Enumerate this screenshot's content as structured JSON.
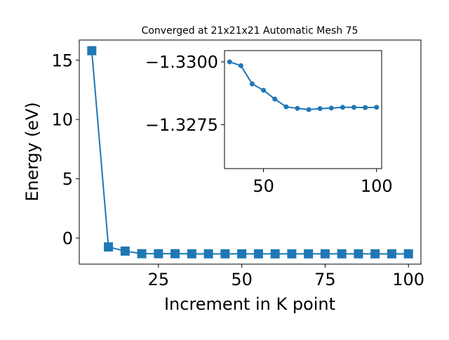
{
  "chart_data": [
    {
      "type": "line",
      "title": "Converged at 21x21x21 Automatic Mesh 75",
      "xlabel": "Increment in K point",
      "ylabel": "Energy (eV)",
      "xlim": [
        1.25,
        103.75
      ],
      "ylim": [
        -2.2,
        16.7
      ],
      "xticks": [
        25,
        50,
        75,
        100
      ],
      "yticks": [
        0,
        5,
        10,
        15
      ],
      "grid": false,
      "marker": "square",
      "series": [
        {
          "color": "#1f77b4",
          "x": [
            5,
            10,
            15,
            20,
            25,
            30,
            35,
            40,
            45,
            50,
            55,
            60,
            65,
            70,
            75,
            80,
            85,
            90,
            95,
            100
          ],
          "y": [
            15.8,
            -0.75,
            -1.1,
            -1.32,
            -1.32,
            -1.32,
            -1.33,
            -1.33,
            -1.33,
            -1.33,
            -1.33,
            -1.33,
            -1.33,
            -1.33,
            -1.33,
            -1.33,
            -1.33,
            -1.33,
            -1.33,
            -1.33
          ]
        }
      ]
    },
    {
      "type": "line",
      "title": "",
      "xlabel": "",
      "ylabel": "",
      "xlim": [
        32.75,
        102.25
      ],
      "ylim": [
        -1.32575,
        -1.33045
      ],
      "y_axis_inverted": true,
      "xticks": [
        50,
        100
      ],
      "yticks": [
        -1.33,
        -1.3275
      ],
      "ytick_labels": [
        "−1.3300",
        "−1.3275"
      ],
      "grid": false,
      "marker": "circle",
      "series": [
        {
          "color": "#1f77b4",
          "x": [
            35,
            40,
            45,
            50,
            55,
            60,
            65,
            70,
            75,
            80,
            85,
            90,
            95,
            100
          ],
          "y": [
            -1.33,
            -1.32985,
            -1.32912,
            -1.32887,
            -1.32852,
            -1.32821,
            -1.32815,
            -1.3281,
            -1.32814,
            -1.32816,
            -1.32819,
            -1.32819,
            -1.32818,
            -1.32819
          ]
        }
      ]
    }
  ]
}
